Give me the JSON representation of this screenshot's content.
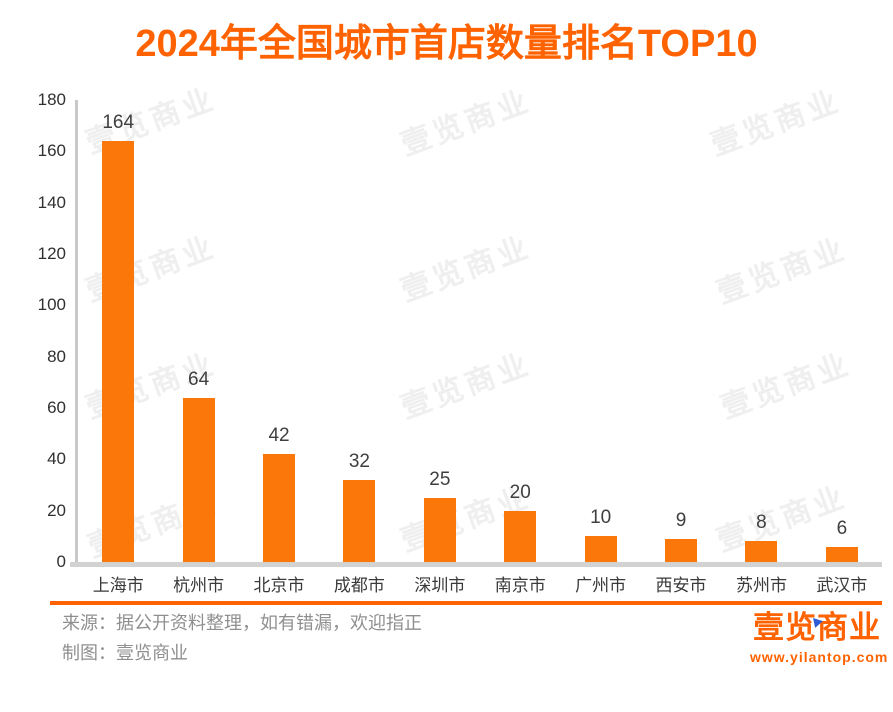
{
  "watermark": {
    "text": "壹览商业"
  },
  "chart_data": {
    "type": "bar",
    "title": "2024年全国城市首店数量排名TOP10",
    "categories": [
      "上海市",
      "杭州市",
      "北京市",
      "成都市",
      "深圳市",
      "南京市",
      "广州市",
      "西安市",
      "苏州市",
      "武汉市"
    ],
    "values": [
      164,
      64,
      42,
      32,
      25,
      20,
      10,
      9,
      8,
      6
    ],
    "xlabel": "",
    "ylabel": "",
    "ylim": [
      0,
      180
    ],
    "yticks": [
      0,
      20,
      40,
      60,
      80,
      100,
      120,
      140,
      160,
      180
    ],
    "grid": false,
    "legend_position": "none",
    "value_labels_shown": true,
    "bar_color": "#FB7709"
  },
  "footer": {
    "source": "来源：据公开资料整理，如有错漏，欢迎指正",
    "credit": "制图：壹览商业"
  },
  "brand": {
    "logo_text": "壹览商业",
    "website": "www.yilantop.com"
  },
  "colors": {
    "accent_orange": "#FF6200",
    "bar_orange": "#FB7709",
    "axis_gray": "#D2D2D2",
    "tick_text": "#303030",
    "value_text": "#3F3F3F",
    "footer_text": "#8F8F8F",
    "watermark_gray": "#EFEFEF",
    "logo_blue": "#2F5BD7"
  }
}
